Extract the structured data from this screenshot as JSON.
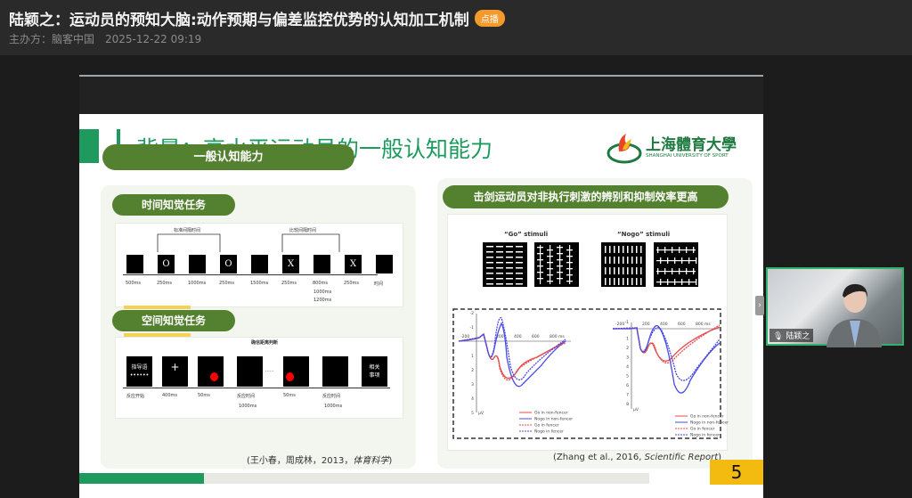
{
  "header": {
    "title": "陆颖之：运动员的预知大脑:动作预期与偏差监控优势的认知加工机制",
    "badge": "点播",
    "organizer": "主办方：脑客中国",
    "datetime": "2025-12-22 09:19"
  },
  "slide": {
    "title": "背景：高水平运动员的一般认知能力",
    "logo": {
      "cn": "上海體育大學",
      "en": "SHANGHAI UNIVERSITY OF SPORT"
    },
    "left": {
      "heading": "一般认知能力",
      "time_task": {
        "label": "时间知觉任务",
        "standard_interval": "标准间隔时间",
        "comparison_interval": "比较间隔时间",
        "stimuli": [
          "",
          "O",
          "",
          "O",
          "",
          "X",
          "",
          "X",
          ""
        ],
        "durations": [
          "500ms",
          "250ms",
          "1000ms",
          "250ms",
          "1500ms",
          "250ms",
          "800ms",
          "250ms"
        ],
        "durations_extra": [
          "1000ms",
          "1200ms"
        ],
        "axis": "时间"
      },
      "space_task": {
        "label": "空间知觉任务",
        "marker": "确信距离判断",
        "first_box": [
          "指导语",
          "••••••"
        ],
        "last_box": [
          "相关",
          "事项"
        ],
        "labels": [
          "反应开始",
          "400ms",
          "50ms",
          "反应时间",
          "50ms",
          "反应时间"
        ],
        "sub_labels": [
          "1000ms",
          "1000ms"
        ],
        "dots": "......"
      },
      "citation": {
        "text": "(王小春，周成林，2013，",
        "journal": "体育科学",
        ")": ")"
      }
    },
    "right": {
      "heading": "击剑运动员对非执行刺激的辨别和抑制效率更高",
      "go_label": "“Go” stimuli",
      "nogo_label": "“Nogo” stimuli",
      "erp1": {
        "y_ticks": [
          "-2",
          "-1",
          "1",
          "2",
          "3",
          "4",
          "5"
        ],
        "x_ticks": [
          "-200",
          "200",
          "400",
          "600",
          "800 ms"
        ],
        "unit": "μV"
      },
      "erp2": {
        "y_ticks": [
          "-1",
          "1",
          "2",
          "3",
          "4",
          "5",
          "6",
          "7",
          "8"
        ],
        "x_ticks": [
          "-200",
          "200",
          "400",
          "600",
          "800 ms"
        ],
        "unit": "μV"
      },
      "legend": [
        "Go in non-fencer",
        "Nogo in non-fencer",
        "Go in fencer",
        "Nogo in fencer"
      ],
      "colors": {
        "go": "#e84a4a",
        "nogo": "#4a4ae8"
      },
      "citation": {
        "text": "(Zhang et al., 2016, ",
        "journal": "Scientific Report",
        "end": ")"
      }
    },
    "page_number": "5"
  },
  "webcam": {
    "name": "陆颖之"
  }
}
